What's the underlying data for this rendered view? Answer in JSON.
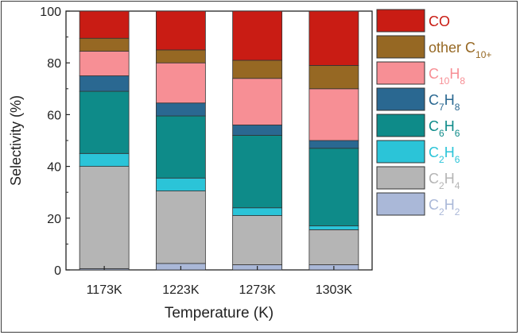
{
  "chart_data": {
    "type": "bar",
    "stacked": true,
    "xlabel": "Temperature (K)",
    "ylabel": "Selectivity (%)",
    "ylim": [
      0,
      100
    ],
    "yticks": [
      0,
      20,
      40,
      60,
      80,
      100
    ],
    "categories": [
      "1173K",
      "1223K",
      "1273K",
      "1303K"
    ],
    "legend_position": "right",
    "series": [
      {
        "name": "C2H2",
        "name_main": "C",
        "name_parts": [
          [
            "2",
            "H"
          ],
          [
            "2",
            ""
          ]
        ],
        "color": "#aab8d8",
        "values": [
          0.5,
          2.5,
          2,
          2
        ]
      },
      {
        "name": "C2H4",
        "name_main": "C",
        "name_parts": [
          [
            "2",
            "H"
          ],
          [
            "4",
            ""
          ]
        ],
        "color": "#b5b5b5",
        "values": [
          39.5,
          28,
          19,
          13.5
        ]
      },
      {
        "name": "C2H6",
        "name_main": "C",
        "name_parts": [
          [
            "2",
            "H"
          ],
          [
            "6",
            ""
          ]
        ],
        "color": "#2bc4d8",
        "values": [
          5,
          5,
          3,
          1.5
        ]
      },
      {
        "name": "C6H6",
        "name_main": "C",
        "name_parts": [
          [
            "6",
            "H"
          ],
          [
            "6",
            ""
          ]
        ],
        "color": "#0e8b89",
        "values": [
          24,
          24,
          28,
          30
        ]
      },
      {
        "name": "C7H8",
        "name_main": "C",
        "name_parts": [
          [
            "7",
            "H"
          ],
          [
            "8",
            ""
          ]
        ],
        "color": "#2a6891",
        "values": [
          6,
          5,
          4,
          3
        ]
      },
      {
        "name": "C10H8",
        "name_main": "C",
        "name_parts": [
          [
            "10",
            "H"
          ],
          [
            "8",
            ""
          ]
        ],
        "color": "#f78f95",
        "values": [
          9.5,
          15.5,
          18,
          20
        ]
      },
      {
        "name": "other C10+",
        "name_main": "other C",
        "name_parts": [
          [
            "10+",
            ""
          ]
        ],
        "color": "#966823",
        "values": [
          5,
          5,
          7,
          9
        ]
      },
      {
        "name": "CO",
        "name_main": "CO",
        "name_parts": [],
        "color": "#c91c14",
        "values": [
          10.5,
          15,
          19,
          21
        ]
      }
    ]
  }
}
